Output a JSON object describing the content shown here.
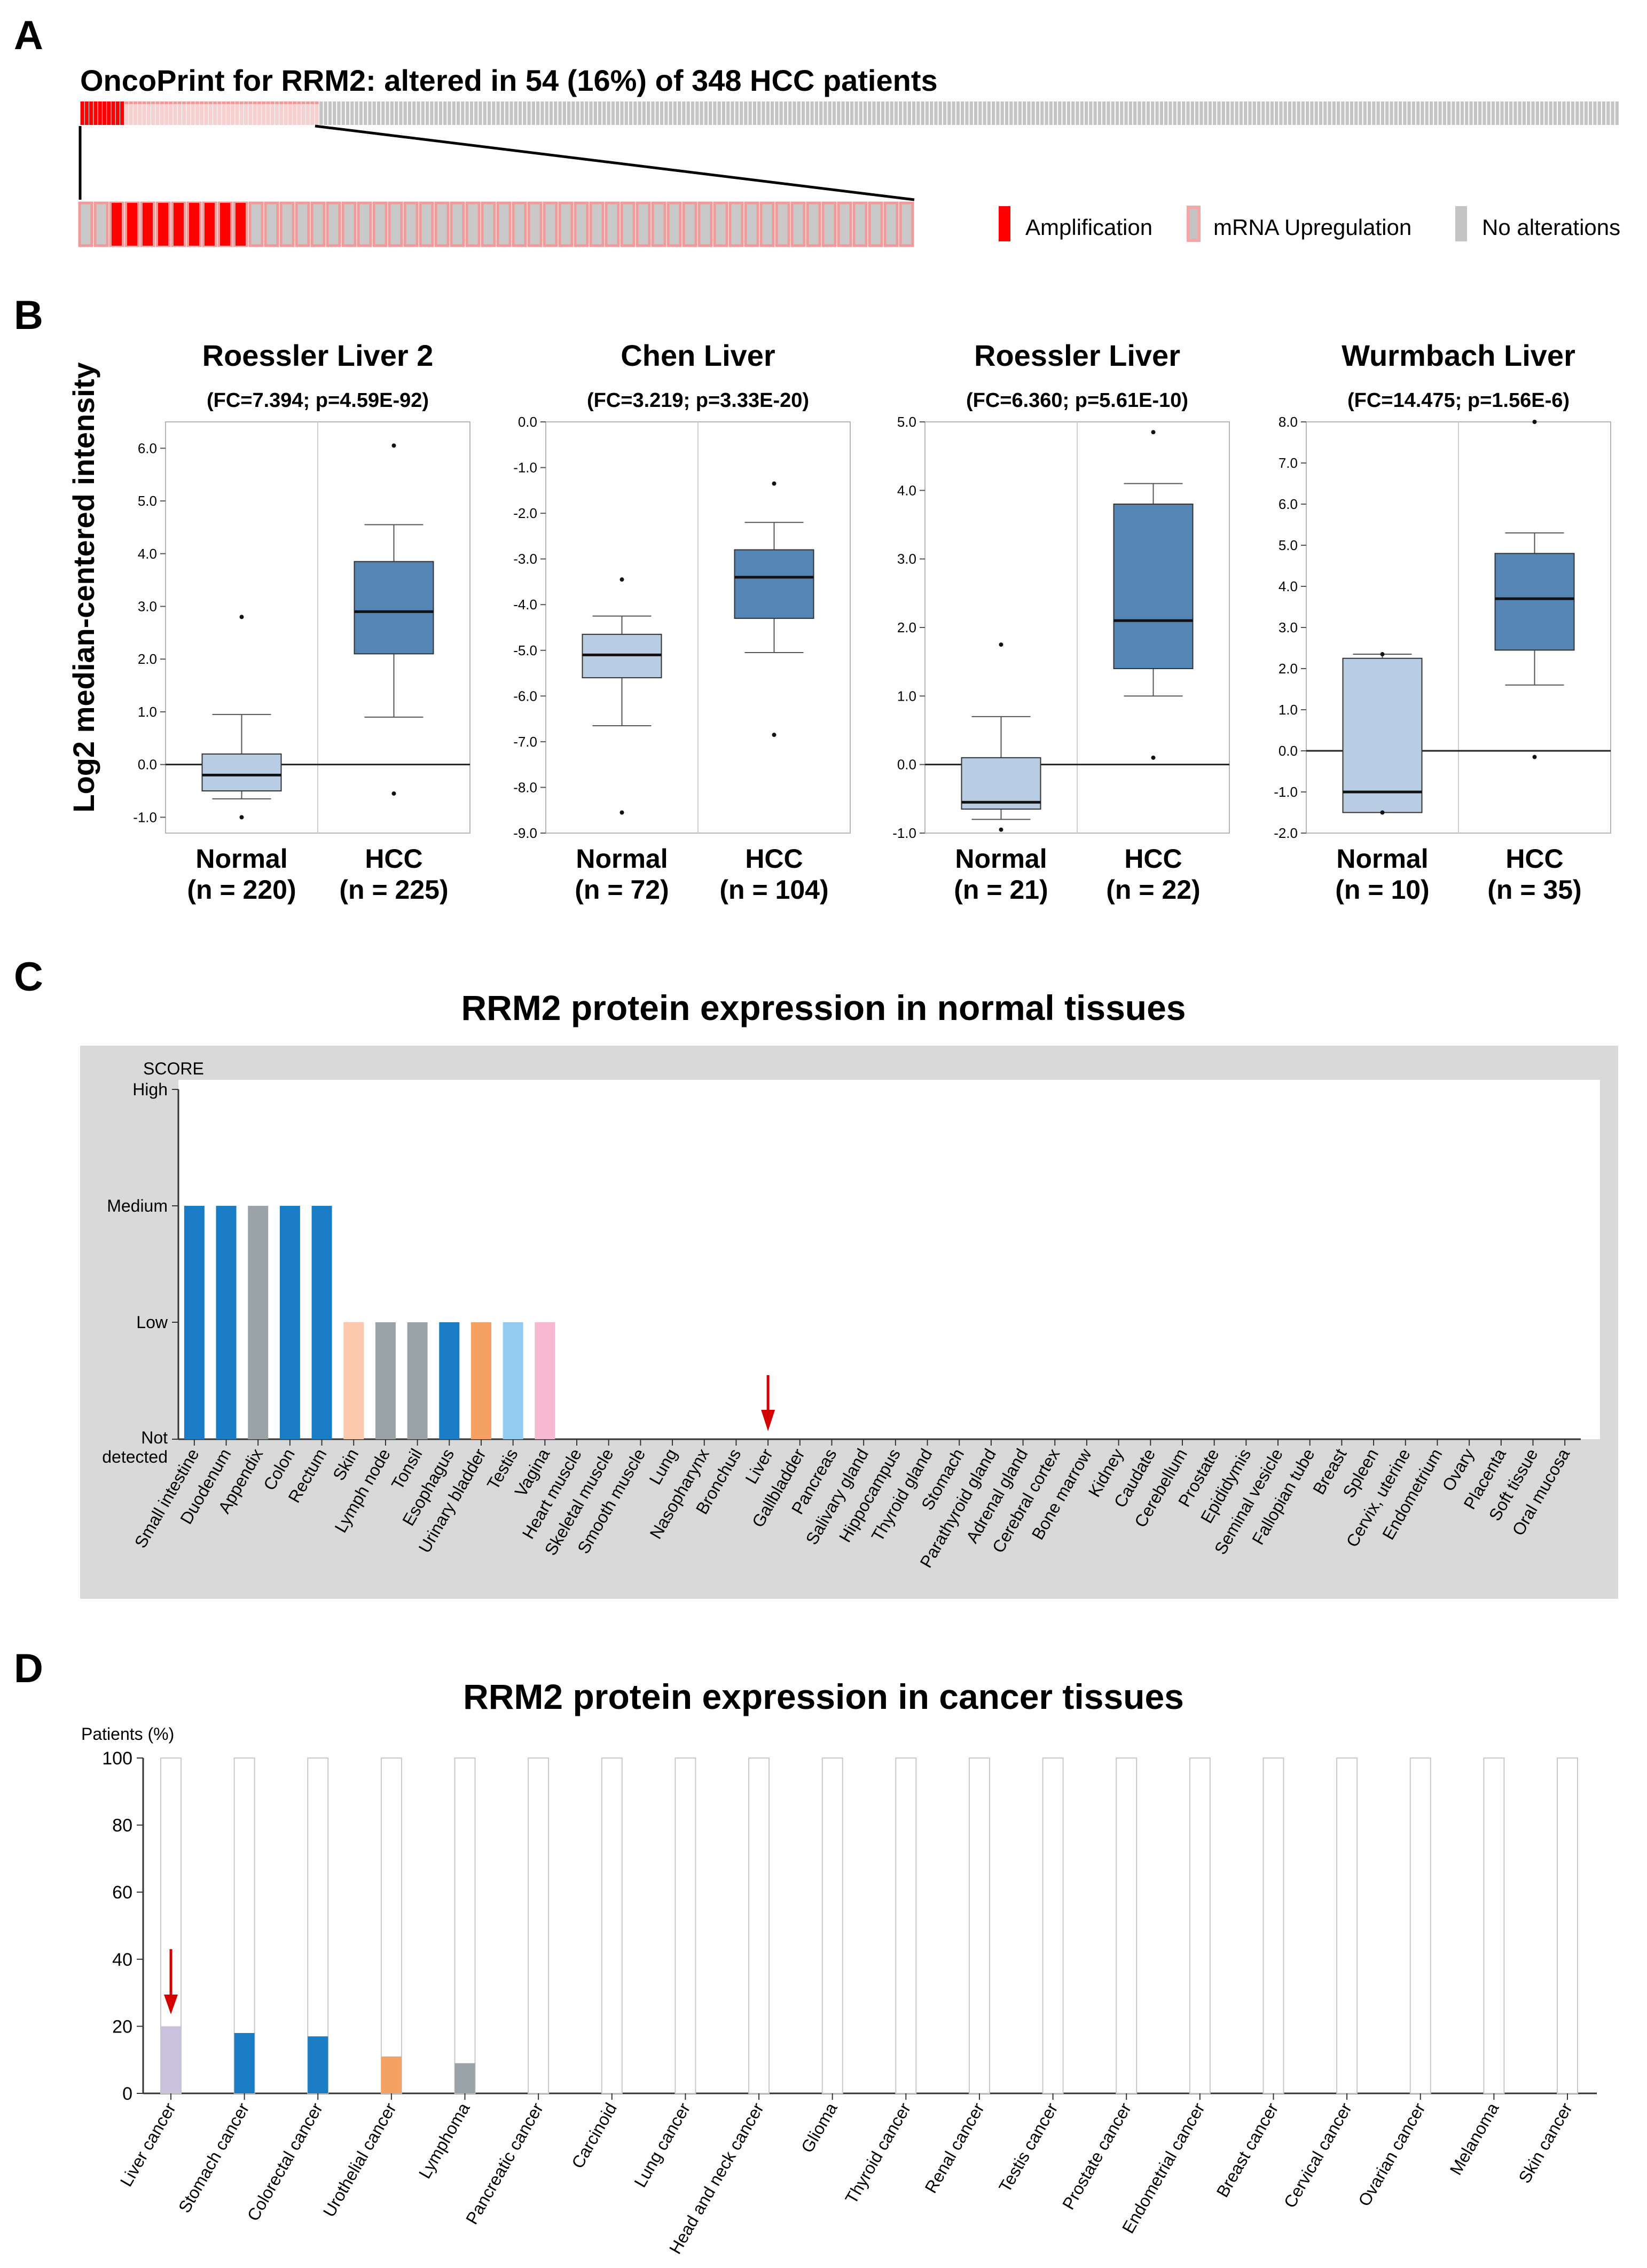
{
  "panels": {
    "a": {
      "letter": "A",
      "title": "OncoPrint for RRM2: altered in 54 (16%) of 348 HCC patients",
      "oncoprint": {
        "total_patients": 348,
        "altered_patients": 54,
        "amplification_patients": 10,
        "zoomed_amplification_patients": 9,
        "colors": {
          "amplification": "#ff0000",
          "mrna_upregulation_border": "#f19a9a",
          "no_alteration": "#c4c4c4"
        }
      },
      "legend": [
        {
          "label": "Amplification",
          "color": "#ff0000"
        },
        {
          "label": "mRNA Upregulation",
          "color": "#f5a6a6"
        },
        {
          "label": "No alterations",
          "color": "#c4c4c4"
        }
      ]
    },
    "b": {
      "letter": "B",
      "ylabel": "Log2 median-centered intensity"
    },
    "c": {
      "letter": "C"
    },
    "d": {
      "letter": "D"
    }
  },
  "chart_data": [
    {
      "type": "box",
      "title": "Roessler Liver 2",
      "subtitle": "(FC=7.394; p=4.59E-92)",
      "ylim": [
        -1.3,
        6.5
      ],
      "yticks": [
        -1.0,
        0.0,
        1.0,
        2.0,
        3.0,
        4.0,
        5.0,
        6.0
      ],
      "groups": [
        {
          "name": "Normal",
          "n": "(n = 220)",
          "min": -0.65,
          "q1": -0.5,
          "median": -0.2,
          "q3": 0.2,
          "max": 0.95,
          "outliers": [
            -1.0,
            2.8
          ],
          "color": "#b8cde3"
        },
        {
          "name": "HCC",
          "n": "(n = 225)",
          "min": 0.9,
          "q1": 2.1,
          "median": 2.9,
          "q3": 3.85,
          "max": 4.55,
          "outliers": [
            -0.55,
            6.05
          ],
          "color": "#5585b5"
        }
      ]
    },
    {
      "type": "box",
      "title": "Chen Liver",
      "subtitle": "(FC=3.219; p=3.33E-20)",
      "ylim": [
        -9.0,
        0.0
      ],
      "yticks": [
        -9.0,
        -8.0,
        -7.0,
        -6.0,
        -5.0,
        -4.0,
        -3.0,
        -2.0,
        -1.0,
        0.0
      ],
      "groups": [
        {
          "name": "Normal",
          "n": "(n = 72)",
          "min": -6.65,
          "q1": -5.6,
          "median": -5.1,
          "q3": -4.65,
          "max": -4.25,
          "outliers": [
            -8.55,
            -3.45
          ],
          "color": "#b8cde3"
        },
        {
          "name": "HCC",
          "n": "(n = 104)",
          "min": -5.05,
          "q1": -4.3,
          "median": -3.4,
          "q3": -2.8,
          "max": -2.2,
          "outliers": [
            -6.85,
            -1.35
          ],
          "color": "#5585b5"
        }
      ]
    },
    {
      "type": "box",
      "title": "Roessler Liver",
      "subtitle": "(FC=6.360; p=5.61E-10)",
      "ylim": [
        -1.0,
        5.0
      ],
      "yticks": [
        -1.0,
        0.0,
        1.0,
        2.0,
        3.0,
        4.0,
        5.0
      ],
      "groups": [
        {
          "name": "Normal",
          "n": "(n = 21)",
          "min": -0.8,
          "q1": -0.65,
          "median": -0.55,
          "q3": 0.1,
          "max": 0.7,
          "outliers": [
            -0.95,
            1.75
          ],
          "color": "#b8cde3"
        },
        {
          "name": "HCC",
          "n": "(n = 22)",
          "min": 1.0,
          "q1": 1.4,
          "median": 2.1,
          "q3": 3.8,
          "max": 4.1,
          "outliers": [
            0.1,
            4.85
          ],
          "color": "#5585b5"
        }
      ]
    },
    {
      "type": "box",
      "title": "Wurmbach Liver",
      "subtitle": "(FC=14.475; p=1.56E-6)",
      "ylim": [
        -2.0,
        8.0
      ],
      "yticks": [
        -2.0,
        -1.0,
        0.0,
        1.0,
        2.0,
        3.0,
        4.0,
        5.0,
        6.0,
        7.0,
        8.0
      ],
      "groups": [
        {
          "name": "Normal",
          "n": "(n = 10)",
          "min": -1.5,
          "q1": -1.5,
          "median": -1.0,
          "q3": 2.25,
          "max": 2.35,
          "outliers": [
            -1.5,
            2.35
          ],
          "color": "#b8cde3"
        },
        {
          "name": "HCC",
          "n": "(n = 35)",
          "min": 1.6,
          "q1": 2.45,
          "median": 3.7,
          "q3": 4.8,
          "max": 5.3,
          "outliers": [
            -0.15,
            8.0
          ],
          "color": "#5585b5"
        }
      ]
    },
    {
      "type": "bar",
      "title": "RRM2 protein expression in normal tissues",
      "ylabel": "SCORE",
      "levels": [
        "Not detected",
        "Low",
        "Medium",
        "High"
      ],
      "level_labels": [
        "Not",
        "detected",
        "Low",
        "Medium",
        "High"
      ],
      "annotation": "red arrow marking Liver",
      "highlight": "Liver",
      "categories": [
        "Small intestine",
        "Duodenum",
        "Appendix",
        "Colon",
        "Rectum",
        "Skin",
        "Lymph node",
        "Tonsil",
        "Esophagus",
        "Urinary bladder",
        "Testis",
        "Vagina",
        "Heart muscle",
        "Skeletal muscle",
        "Smooth muscle",
        "Lung",
        "Nasopharynx",
        "Bronchus",
        "Liver",
        "Gallbladder",
        "Pancreas",
        "Salivary gland",
        "Hippocampus",
        "Thyroid gland",
        "Stomach",
        "Parathyroid gland",
        "Adrenal gland",
        "Cerebral cortex",
        "Bone marrow",
        "Kidney",
        "Caudate",
        "Cerebellum",
        "Prostate",
        "Epididymis",
        "Seminal vesicle",
        "Fallopian tube",
        "Breast",
        "Spleen",
        "Cervix, uterine",
        "Endometrium",
        "Ovary",
        "Placenta",
        "Soft tissue",
        "Oral mucosa"
      ],
      "values": [
        2,
        2,
        2,
        2,
        2,
        1,
        1,
        1,
        1,
        1,
        1,
        1,
        0,
        0,
        0,
        0,
        0,
        0,
        0,
        0,
        0,
        0,
        0,
        0,
        0,
        0,
        0,
        0,
        0,
        0,
        0,
        0,
        0,
        0,
        0,
        0,
        0,
        0,
        0,
        0,
        0,
        0,
        0,
        0
      ],
      "colors": [
        "#1a7cc4",
        "#1a7cc4",
        "#9aa3a8",
        "#1a7cc4",
        "#1a7cc4",
        "#fcc9ad",
        "#9aa3a8",
        "#9aa3a8",
        "#1a7cc4",
        "#f6a063",
        "#92ccf0",
        "#f7b8d2"
      ]
    },
    {
      "type": "bar",
      "title": "RRM2 protein expression in cancer tissues",
      "ylabel": "Patients (%)",
      "ylim": [
        0,
        100
      ],
      "yticks": [
        0,
        20,
        40,
        60,
        80,
        100
      ],
      "annotation": "red arrow marking Liver cancer",
      "highlight": "Liver cancer",
      "categories": [
        "Liver cancer",
        "Stomach cancer",
        "Colorectal cancer",
        "Urothelial cancer",
        "Lymphoma",
        "Pancreatic cancer",
        "Carcinoid",
        "Lung cancer",
        "Head and neck cancer",
        "Glioma",
        "Thyroid cancer",
        "Renal cancer",
        "Testis cancer",
        "Prostate cancer",
        "Endometrial cancer",
        "Breast cancer",
        "Cervical cancer",
        "Ovarian cancer",
        "Melanoma",
        "Skin cancer"
      ],
      "values": [
        20,
        18,
        17,
        11,
        9,
        0,
        0,
        0,
        0,
        0,
        0,
        0,
        0,
        0,
        0,
        0,
        0,
        0,
        0,
        0
      ],
      "colors": [
        "#c9c1de",
        "#1a7cc4",
        "#1a7cc4",
        "#f6a063",
        "#9aa3a8"
      ]
    }
  ]
}
